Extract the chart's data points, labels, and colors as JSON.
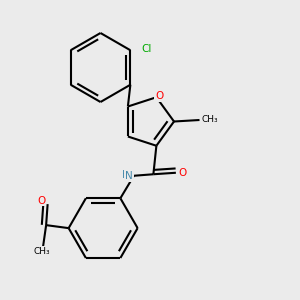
{
  "bg_color": "#ebebeb",
  "bond_color": "#000000",
  "atom_colors": {
    "O": "#ff0000",
    "N": "#4488aa",
    "Cl": "#00aa00",
    "C": "#000000",
    "H": "#4488aa"
  },
  "lw": 1.5,
  "dbo": 0.012
}
